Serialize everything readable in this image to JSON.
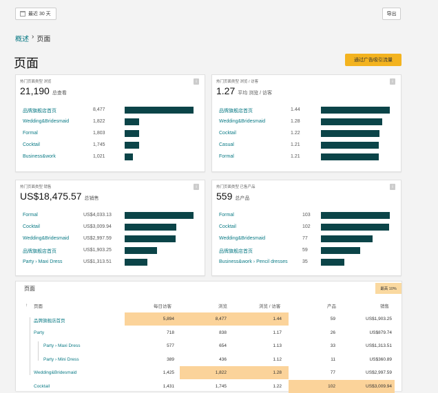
{
  "toolbar": {
    "date_range": "最近 30 天",
    "export_label": "导出"
  },
  "breadcrumb": {
    "parent": "概述",
    "separator": "›",
    "current": "页面"
  },
  "page_title": "页面",
  "cta_label": "通过广告吸引流量",
  "cards": [
    {
      "label": "热门页面类型 浏览",
      "metric": "21,190",
      "metric_sub": "总查看",
      "rows": [
        {
          "label": "品牌旗舰店首页",
          "value": "8,477",
          "num": 8477
        },
        {
          "label": "Wedding&Bridesmaid",
          "value": "1,822",
          "num": 1822
        },
        {
          "label": "Formal",
          "value": "1,803",
          "num": 1803
        },
        {
          "label": "Cocktail",
          "value": "1,745",
          "num": 1745
        },
        {
          "label": "Business&work",
          "value": "1,021",
          "num": 1021
        }
      ]
    },
    {
      "label": "热门页面类型 浏览 / 访客",
      "metric": "1.27",
      "metric_sub": "平均 浏览 / 访客",
      "rows": [
        {
          "label": "品牌旗舰店首页",
          "value": "1.44",
          "num": 1.44
        },
        {
          "label": "Wedding&Bridesmaid",
          "value": "1.28",
          "num": 1.28
        },
        {
          "label": "Cocktail",
          "value": "1.22",
          "num": 1.22
        },
        {
          "label": "Casual",
          "value": "1.21",
          "num": 1.21
        },
        {
          "label": "Formal",
          "value": "1.21",
          "num": 1.21
        }
      ]
    },
    {
      "label": "热门页面类型 销售",
      "metric": "US$18,475.57",
      "metric_sub": "总销售",
      "rows": [
        {
          "label": "Formal",
          "value": "US$4,033.13",
          "num": 4033.13
        },
        {
          "label": "Cocktail",
          "value": "US$3,009.94",
          "num": 3009.94
        },
        {
          "label": "Wedding&Bridesmaid",
          "value": "US$2,997.59",
          "num": 2997.59
        },
        {
          "label": "品牌旗舰店首页",
          "value": "US$1,903.25",
          "num": 1903.25
        },
        {
          "label": "Party › Maxi Dress",
          "value": "US$1,313.51",
          "num": 1313.51
        }
      ]
    },
    {
      "label": "热门页面类型 已售产品",
      "metric": "559",
      "metric_sub": "总产品",
      "rows": [
        {
          "label": "Formal",
          "value": "103",
          "num": 103
        },
        {
          "label": "Cocktail",
          "value": "102",
          "num": 102
        },
        {
          "label": "Wedding&Bridesmaid",
          "value": "77",
          "num": 77
        },
        {
          "label": "品牌旗舰店首页",
          "value": "59",
          "num": 59
        },
        {
          "label": "Business&work › Pencil dresses",
          "value": "35",
          "num": 35
        }
      ]
    }
  ],
  "table": {
    "title": "页面",
    "badge": "最高 10%",
    "sort_icon": "up-arrow-icon",
    "headers": [
      "页面",
      "每日访客",
      "浏览",
      "浏览 / 访客",
      "产品",
      "销售"
    ],
    "rows": [
      {
        "page": "品牌旗舰店首页",
        "visitors": "5,894",
        "views": "8,477",
        "ratio": "1.44",
        "products": "59",
        "sales": "US$1,903.25"
      },
      {
        "page": "Party",
        "visitors": "718",
        "views": "838",
        "ratio": "1.17",
        "products": "26",
        "sales": "US$879.74"
      },
      {
        "page": "Party › Maxi Dress",
        "visitors": "577",
        "views": "654",
        "ratio": "1.13",
        "products": "33",
        "sales": "US$1,313.51"
      },
      {
        "page": "Party › Mini Dress",
        "visitors": "389",
        "views": "436",
        "ratio": "1.12",
        "products": "11",
        "sales": "US$360.89"
      },
      {
        "page": "Wedding&Bridesmaid",
        "visitors": "1,425",
        "views": "1,822",
        "ratio": "1.28",
        "products": "77",
        "sales": "US$2,997.59"
      },
      {
        "page": "Cocktail",
        "visitors": "1,431",
        "views": "1,745",
        "ratio": "1.22",
        "products": "102",
        "sales": "US$3,009.94"
      }
    ]
  },
  "colors": {
    "bar": "#0b4448",
    "link": "#0a7a85",
    "highlight": "#fbd39a",
    "cta": "#f3b31f"
  }
}
